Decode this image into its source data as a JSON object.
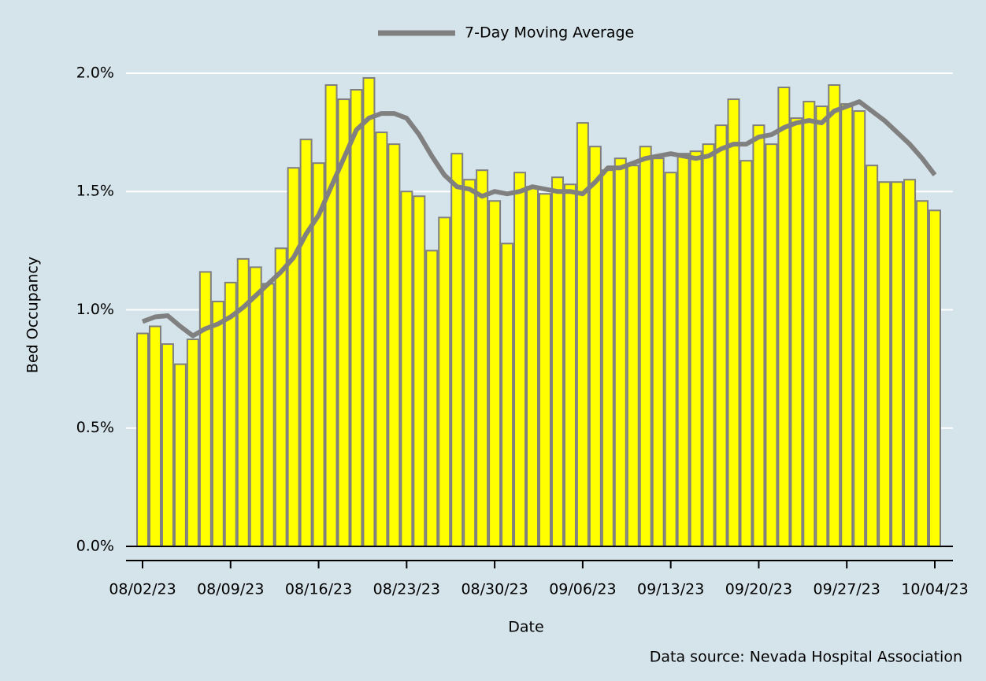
{
  "chart_data": {
    "type": "bar",
    "x_label": "Date",
    "y_label": "Bed Occupancy",
    "source": "Data source: Nevada Hospital Association",
    "categories": [
      "08/02/23",
      "08/03/23",
      "08/04/23",
      "08/05/23",
      "08/06/23",
      "08/07/23",
      "08/08/23",
      "08/09/23",
      "08/10/23",
      "08/11/23",
      "08/12/23",
      "08/13/23",
      "08/14/23",
      "08/15/23",
      "08/16/23",
      "08/17/23",
      "08/18/23",
      "08/19/23",
      "08/20/23",
      "08/21/23",
      "08/22/23",
      "08/23/23",
      "08/24/23",
      "08/25/23",
      "08/26/23",
      "08/27/23",
      "08/28/23",
      "08/29/23",
      "08/30/23",
      "08/31/23",
      "09/01/23",
      "09/02/23",
      "09/03/23",
      "09/04/23",
      "09/05/23",
      "09/06/23",
      "09/07/23",
      "09/08/23",
      "09/09/23",
      "09/10/23",
      "09/11/23",
      "09/12/23",
      "09/13/23",
      "09/14/23",
      "09/15/23",
      "09/16/23",
      "09/17/23",
      "09/18/23",
      "09/19/23",
      "09/20/23",
      "09/21/23",
      "09/22/23",
      "09/23/23",
      "09/24/23",
      "09/25/23",
      "09/26/23",
      "09/27/23",
      "09/28/23",
      "09/29/23",
      "09/30/23",
      "10/01/23",
      "10/02/23",
      "10/03/23",
      "10/04/23"
    ],
    "values": [
      0.9,
      0.93,
      0.855,
      0.77,
      0.875,
      1.16,
      1.035,
      1.115,
      1.215,
      1.18,
      1.11,
      1.26,
      1.6,
      1.72,
      1.62,
      1.95,
      1.89,
      1.93,
      1.98,
      1.75,
      1.7,
      1.5,
      1.48,
      1.25,
      1.39,
      1.66,
      1.55,
      1.59,
      1.46,
      1.28,
      1.58,
      1.52,
      1.49,
      1.56,
      1.53,
      1.79,
      1.69,
      1.59,
      1.64,
      1.61,
      1.69,
      1.64,
      1.58,
      1.66,
      1.67,
      1.7,
      1.78,
      1.89,
      1.63,
      1.78,
      1.7,
      1.94,
      1.81,
      1.88,
      1.86,
      1.95,
      1.87,
      1.84,
      1.61,
      1.54,
      1.54,
      1.55,
      1.46,
      1.42
    ],
    "color": "#ffff00",
    "edge_color": "#7f7f7f",
    "moving_average": {
      "name": "7-Day Moving Average",
      "color": "#808080",
      "values": [
        0.95,
        0.97,
        0.975,
        0.93,
        0.89,
        0.92,
        0.94,
        0.97,
        1.01,
        1.06,
        1.11,
        1.16,
        1.22,
        1.32,
        1.4,
        1.52,
        1.64,
        1.76,
        1.81,
        1.83,
        1.83,
        1.81,
        1.74,
        1.65,
        1.57,
        1.52,
        1.51,
        1.48,
        1.5,
        1.49,
        1.5,
        1.52,
        1.51,
        1.5,
        1.5,
        1.49,
        1.54,
        1.6,
        1.6,
        1.62,
        1.64,
        1.65,
        1.66,
        1.65,
        1.64,
        1.65,
        1.68,
        1.7,
        1.7,
        1.73,
        1.74,
        1.77,
        1.79,
        1.8,
        1.79,
        1.84,
        1.86,
        1.88,
        1.84,
        1.8,
        1.75,
        1.7,
        1.64,
        1.57
      ]
    },
    "ylim": [
      -0.06,
      2.0
    ],
    "yticks": [
      {
        "value": 0,
        "label": "0.0%"
      },
      {
        "value": 0.5,
        "label": "0.5%"
      },
      {
        "value": 1.0,
        "label": "1.0%"
      },
      {
        "value": 1.5,
        "label": "1.5%"
      },
      {
        "value": 2.0,
        "label": "2.0%"
      }
    ],
    "grid": true
  }
}
